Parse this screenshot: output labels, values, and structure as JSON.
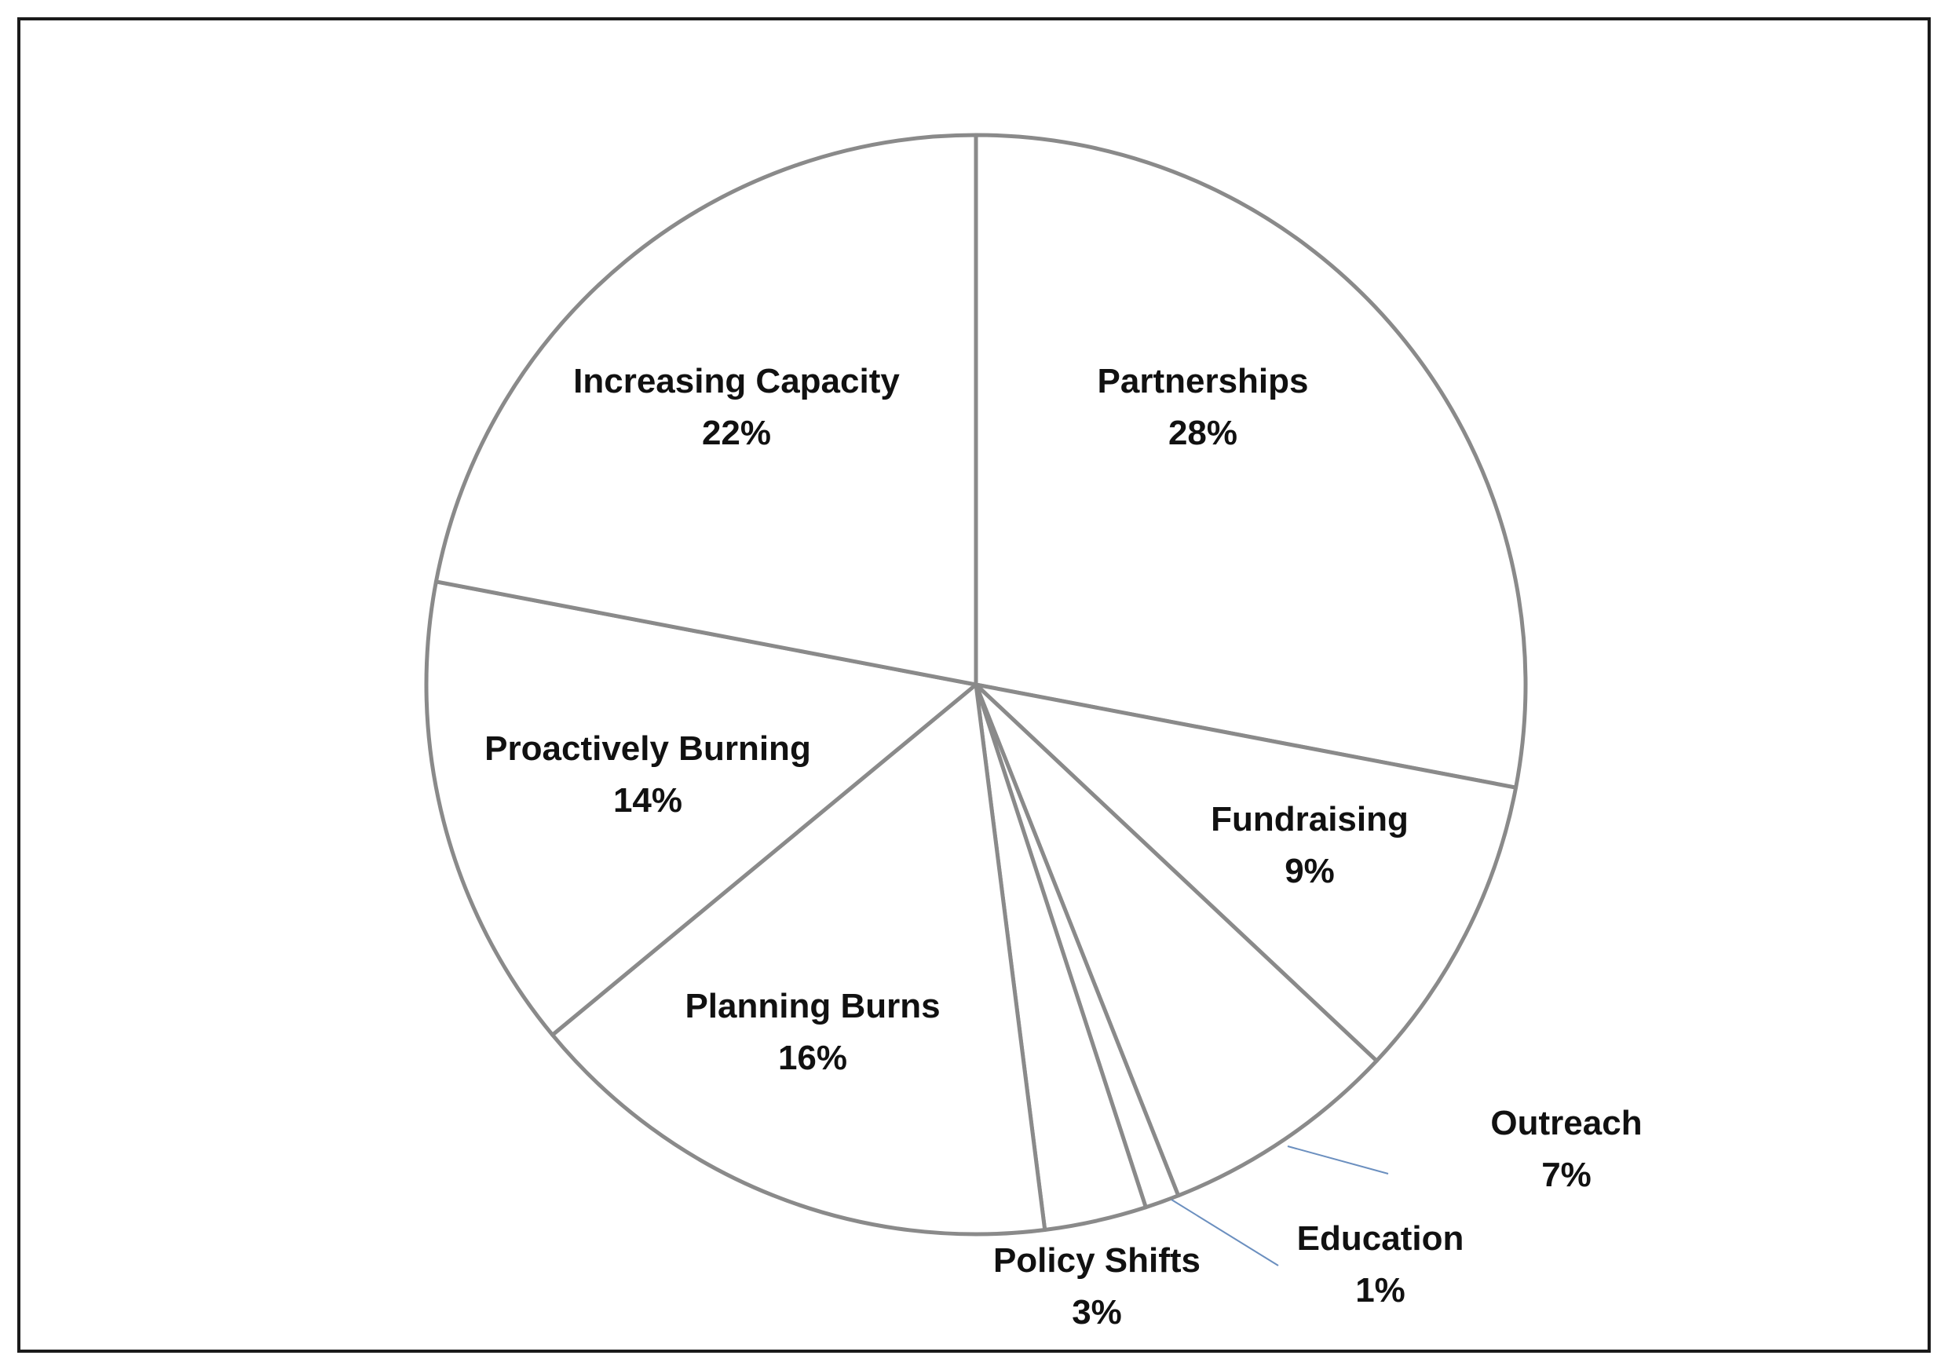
{
  "chart_data": {
    "type": "pie",
    "title": "",
    "start_angle_deg": 0,
    "direction": "clockwise",
    "colors": {
      "fill": "#ffffff",
      "outline": "#8a8a8a",
      "leader": "#6b8fbf",
      "border": "#1a1a1a"
    },
    "slices": [
      {
        "label": "Partnerships",
        "value": 28,
        "value_label": "28%",
        "leader": false
      },
      {
        "label": "Fundraising",
        "value": 9,
        "value_label": "9%",
        "leader": false
      },
      {
        "label": "Outreach",
        "value": 7,
        "value_label": "7%",
        "leader": true
      },
      {
        "label": "Education",
        "value": 1,
        "value_label": "1%",
        "leader": true
      },
      {
        "label": "Policy Shifts",
        "value": 3,
        "value_label": "3%",
        "leader": false
      },
      {
        "label": "Planning Burns",
        "value": 16,
        "value_label": "16%",
        "leader": false
      },
      {
        "label": "Proactively Burning",
        "value": 14,
        "value_label": "14%",
        "leader": false
      },
      {
        "label": "Increasing Capacity",
        "value": 22,
        "value_label": "22%",
        "leader": false
      }
    ]
  }
}
